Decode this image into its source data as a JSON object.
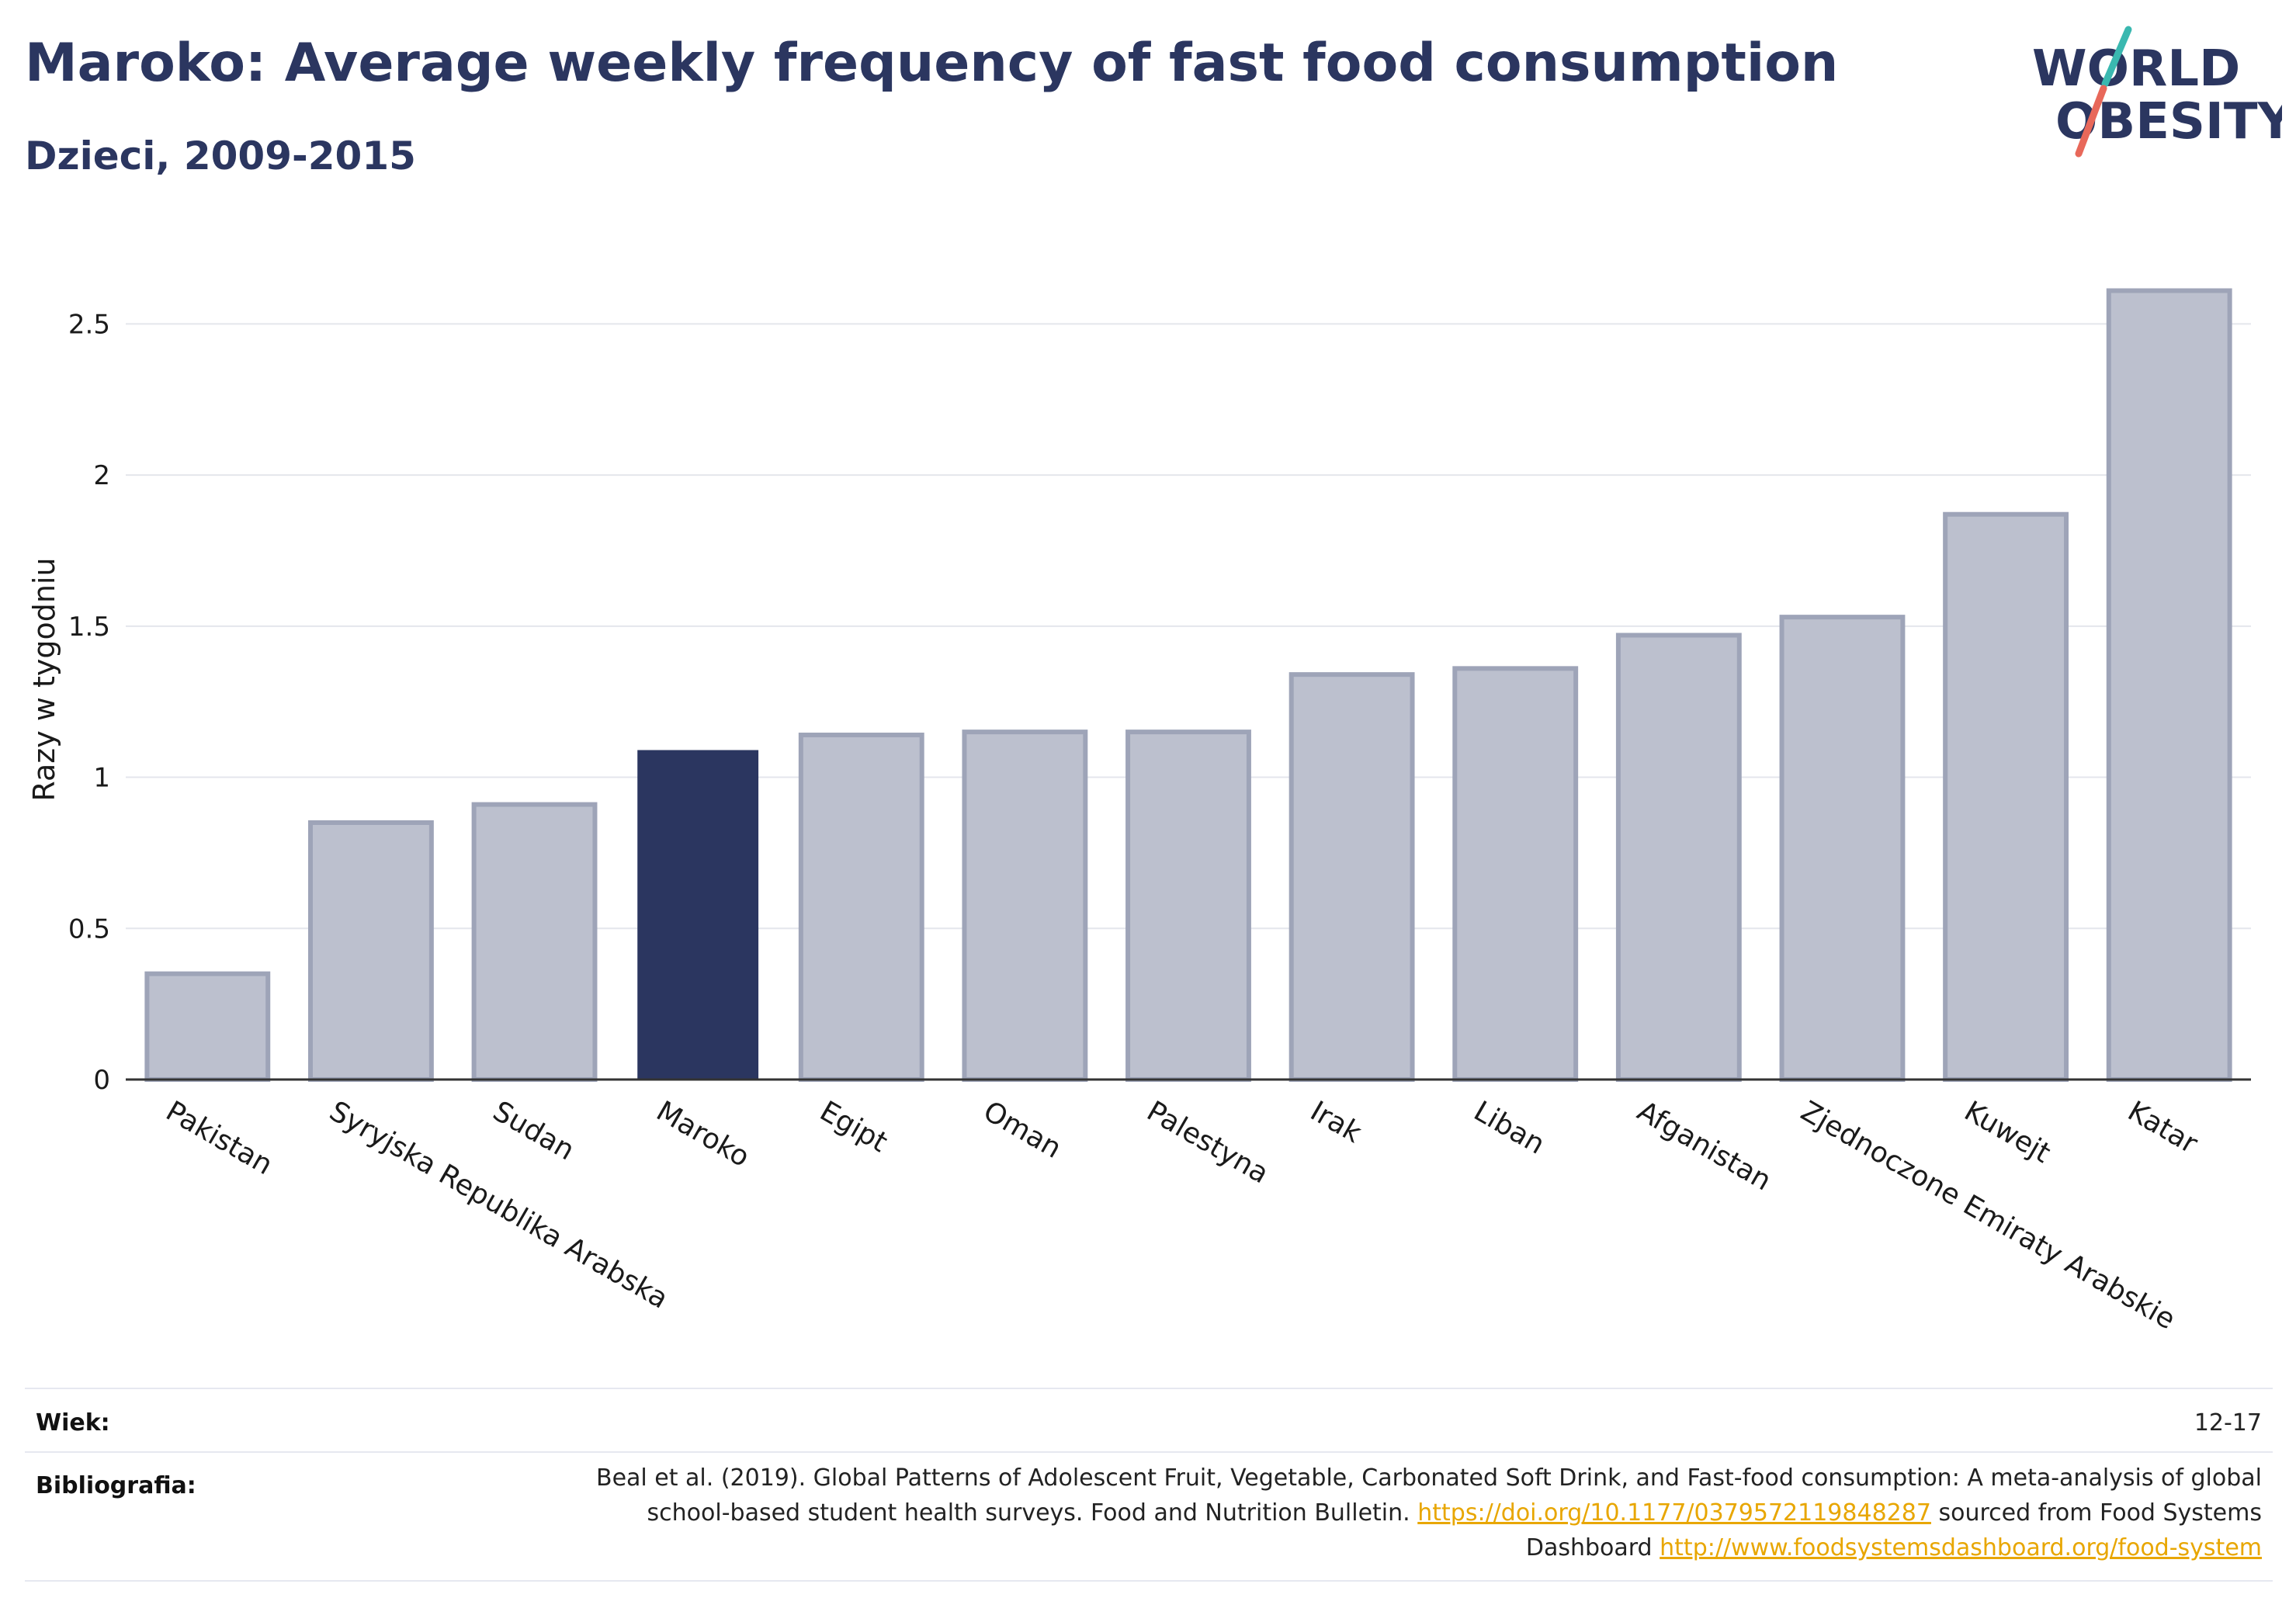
{
  "header": {
    "title": "Maroko: Average weekly frequency of fast food consumption",
    "subtitle": "Dzieci, 2009-2015"
  },
  "logo": {
    "line1": "WORLD",
    "line2": "OBESITY",
    "accent_teal": "#3ab8b0",
    "accent_red": "#e8685a",
    "text_color": "#2b3660"
  },
  "colors": {
    "highlight_bar": "#2b3660",
    "other_bar_fill": "#bcc0ce",
    "other_bar_stroke": "#9ea4b8",
    "title": "#2b3660",
    "link": "#e8a600"
  },
  "chart_data": {
    "type": "bar",
    "title": "Maroko: Average weekly frequency of fast food consumption",
    "subtitle": "Dzieci, 2009-2015",
    "xlabel": "",
    "ylabel": "Razy w tygodniu",
    "ylim": [
      0,
      2.75
    ],
    "yticks": [
      0,
      0.5,
      1,
      1.5,
      2,
      2.5
    ],
    "ytick_labels": [
      "0",
      "0.5",
      "1",
      "1.5",
      "2",
      "2.5"
    ],
    "grid": true,
    "highlight": "Maroko",
    "categories": [
      "Pakistan",
      "Syryjska Republika Arabska",
      "Sudan",
      "Maroko",
      "Egipt",
      "Oman",
      "Palestyna",
      "Irak",
      "Liban",
      "Afganistan",
      "Zjednoczone Emiraty Arabskie",
      "Kuwejt",
      "Katar"
    ],
    "values": [
      0.35,
      0.85,
      0.91,
      1.09,
      1.14,
      1.15,
      1.15,
      1.34,
      1.36,
      1.47,
      1.53,
      1.87,
      2.61
    ]
  },
  "footer": {
    "age_label": "Wiek:",
    "age_value": "12-17",
    "biblio_label": "Bibliografia:",
    "biblio_text_1": "Beal et al. (2019). Global Patterns of Adolescent Fruit, Vegetable, Carbonated Soft Drink, and Fast-food consumption: A meta-analysis of global school-based student health surveys. Food and Nutrition Bulletin.",
    "biblio_link_1": "https://doi.org/10.1177/0379572119848287",
    "biblio_text_2": "sourced from Food Systems Dashboard",
    "biblio_link_2": "http://www.foodsystemsdashboard.org/food-system"
  }
}
